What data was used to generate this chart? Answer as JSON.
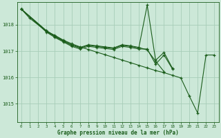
{
  "title": "Graphe pression niveau de la mer (hPa)",
  "bg_color": "#cce8d8",
  "grid_color": "#a8cdb8",
  "line_color": "#1a5c1a",
  "xlim": [
    -0.5,
    23.5
  ],
  "ylim": [
    1014.3,
    1018.85
  ],
  "yticks": [
    1015,
    1016,
    1017,
    1018
  ],
  "xticks": [
    0,
    1,
    2,
    3,
    4,
    5,
    6,
    7,
    8,
    9,
    10,
    11,
    12,
    13,
    14,
    15,
    16,
    17,
    18,
    19,
    20,
    21,
    22,
    23
  ],
  "curve1_x": [
    0,
    1,
    3,
    4,
    5,
    6,
    7,
    8,
    9,
    10,
    11,
    12,
    13,
    14,
    15,
    16,
    17,
    18,
    19,
    20,
    21,
    22,
    23
  ],
  "curve1_y": [
    1018.6,
    1018.25,
    1017.75,
    1017.6,
    1017.42,
    1017.28,
    1017.16,
    1017.06,
    1016.96,
    1016.86,
    1016.76,
    1016.66,
    1016.56,
    1016.46,
    1016.36,
    1016.26,
    1016.18,
    1016.08,
    1015.98,
    1015.3,
    1014.65,
    1016.85,
    1016.85
  ],
  "curve2_x": [
    0,
    3,
    4,
    5,
    6,
    7,
    8,
    9,
    10,
    11,
    12,
    13,
    14,
    15,
    16,
    17,
    18
  ],
  "curve2_y": [
    1018.6,
    1017.75,
    1017.55,
    1017.38,
    1017.22,
    1017.12,
    1017.22,
    1017.18,
    1017.14,
    1017.1,
    1017.22,
    1017.18,
    1017.12,
    1018.75,
    1016.65,
    1016.95,
    1016.35
  ],
  "curve3_x": [
    0,
    3,
    4,
    5,
    6,
    7,
    8,
    9,
    10,
    11,
    12,
    13,
    14,
    15,
    16,
    17,
    18
  ],
  "curve3_y": [
    1018.6,
    1017.72,
    1017.52,
    1017.35,
    1017.18,
    1017.08,
    1017.18,
    1017.14,
    1017.1,
    1017.06,
    1017.18,
    1017.14,
    1017.08,
    1017.08,
    1016.5,
    1016.85,
    1016.32
  ],
  "curve4_x": [
    0,
    3,
    4,
    5,
    6,
    7,
    8,
    9,
    10,
    11,
    12,
    13,
    14,
    15,
    16,
    17
  ],
  "curve4_y": [
    1018.6,
    1017.78,
    1017.58,
    1017.4,
    1017.24,
    1017.14,
    1017.24,
    1017.2,
    1017.16,
    1017.12,
    1017.24,
    1017.2,
    1017.14,
    1017.04,
    1016.62,
    1016.22
  ]
}
